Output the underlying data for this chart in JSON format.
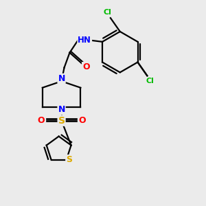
{
  "background_color": "#ebebeb",
  "atom_colors": {
    "C": "#000000",
    "H": "#000000",
    "N": "#0000ff",
    "O": "#ff0000",
    "S": "#ddaa00",
    "Cl": "#00bb00"
  },
  "bond_color": "#000000",
  "figsize": [
    3.0,
    3.0
  ],
  "dpi": 100,
  "lw": 1.6
}
